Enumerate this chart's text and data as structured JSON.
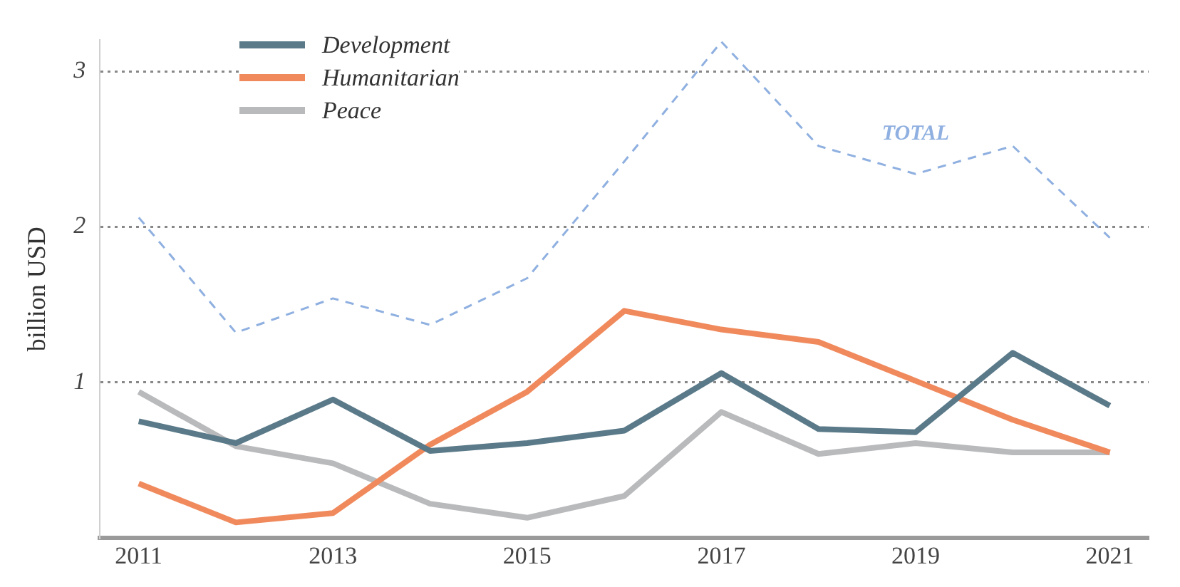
{
  "chart_data": {
    "type": "line",
    "ylabel": "billion USD",
    "x": [
      2011,
      2012,
      2013,
      2014,
      2015,
      2016,
      2017,
      2018,
      2019,
      2020,
      2021
    ],
    "series": [
      {
        "name": "Development",
        "color": "#5b7a89",
        "values": [
          0.75,
          0.61,
          0.89,
          0.56,
          0.61,
          0.69,
          1.06,
          0.7,
          0.68,
          1.19,
          0.85
        ]
      },
      {
        "name": "Humanitarian",
        "color": "#f08a5d",
        "values": [
          0.35,
          0.1,
          0.16,
          0.6,
          0.94,
          1.46,
          1.34,
          1.26,
          1.01,
          0.76,
          0.55
        ]
      },
      {
        "name": "Peace",
        "color": "#b9babc",
        "values": [
          0.94,
          0.59,
          0.48,
          0.22,
          0.13,
          0.27,
          0.81,
          0.54,
          0.61,
          0.55,
          0.55
        ]
      },
      {
        "name": "TOTAL",
        "color": "#8fb0e0",
        "line_style": "dashed",
        "values": [
          2.06,
          1.32,
          1.54,
          1.37,
          1.67,
          2.42,
          3.19,
          2.52,
          2.34,
          2.52,
          1.93
        ]
      }
    ],
    "xlim": [
      2010.6,
      2021.4
    ],
    "xticks": [
      2011,
      2013,
      2015,
      2017,
      2019,
      2021
    ],
    "ylim": [
      0,
      3.2
    ],
    "yticks": [
      1,
      2,
      3
    ],
    "grid": "y",
    "legend": "top left",
    "marker": "none",
    "line_style": "solid"
  }
}
